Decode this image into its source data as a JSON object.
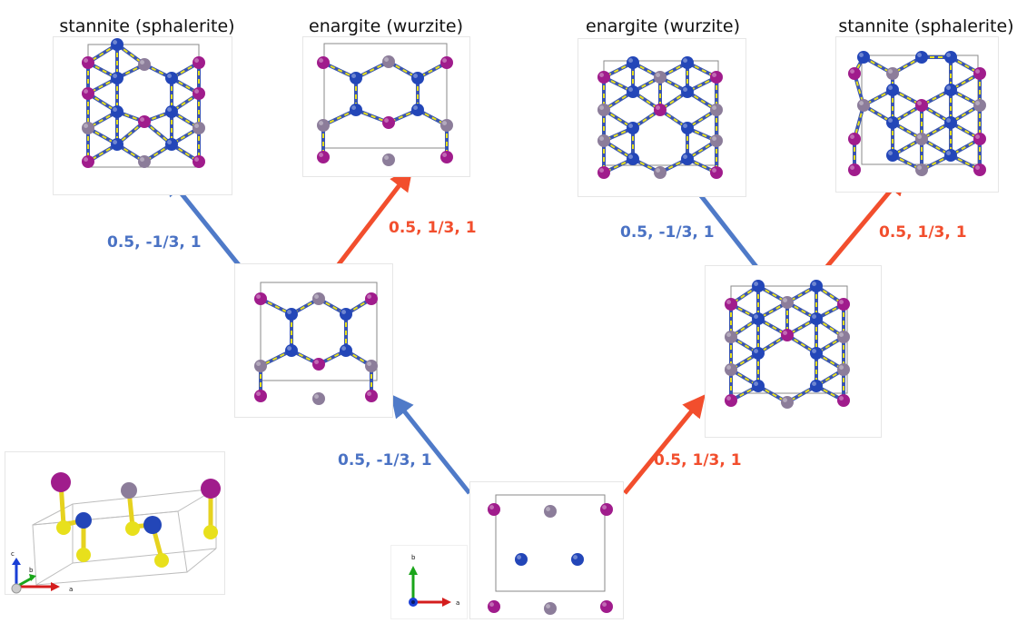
{
  "colors": {
    "blue_arrow": "#4f7ac8",
    "red_arrow": "#f24e2d",
    "blue_label": "#4a72c4",
    "red_label": "#f24e2d",
    "atom_blue": "#2346b8",
    "atom_magenta": "#a01c8c",
    "atom_grey": "#8c7d9a",
    "atom_yellow": "#e8e01c",
    "bond_yellow": "#e8e01c"
  },
  "titles": {
    "top_left_1": "stannite (sphalerite)",
    "top_left_2": "enargite (wurzite)",
    "top_right_1": "enargite (wurzite)",
    "top_right_2": "stannite (sphalerite)"
  },
  "vectors": {
    "v1": "0.5, -1/3, 1",
    "v2": "0.5, 1/3, 1",
    "v3": "0.5, -1/3, 1",
    "v4": "0.5, 1/3, 1",
    "v5": "0.5, -1/3, 1",
    "v6": "0.5, 1/3, 1"
  },
  "axes": {
    "perspective": {
      "c": "c",
      "b": "b",
      "a": "a"
    },
    "plan": {
      "b": "b",
      "a": "a"
    }
  }
}
